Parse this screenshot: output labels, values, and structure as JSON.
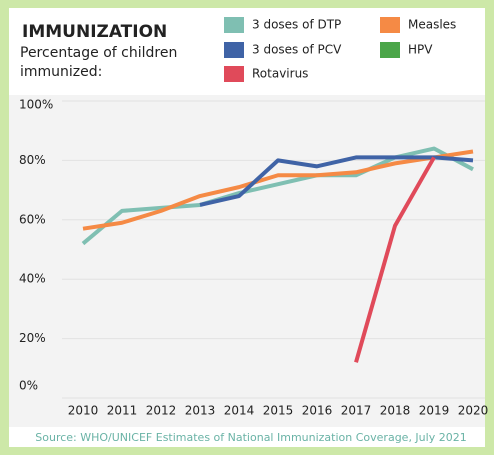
{
  "chart_data": {
    "type": "line",
    "title": "IMMUNIZATION",
    "subtitle": "Percentage of children immunized:",
    "source": "Source: WHO/UNICEF Estimates of National Immunization Coverage, July 2021",
    "categories": [
      "2010",
      "2011",
      "2012",
      "2013",
      "2014",
      "2015",
      "2016",
      "2017",
      "2018",
      "2019",
      "2020"
    ],
    "series": [
      {
        "name": "3 doses of DTP",
        "color": "#7fbfb2",
        "values": [
          52,
          63,
          64,
          65,
          69,
          72,
          75,
          75,
          81,
          84,
          77
        ]
      },
      {
        "name": "Measles",
        "color": "#f58a45",
        "values": [
          57,
          59,
          63,
          68,
          71,
          75,
          75,
          76,
          79,
          81,
          83
        ]
      },
      {
        "name": "3 doses of PCV",
        "color": "#3f63a6",
        "values": [
          null,
          null,
          null,
          65,
          68,
          80,
          78,
          81,
          81,
          81,
          80
        ]
      },
      {
        "name": "HPV",
        "color": "#4aa548",
        "values": [
          null,
          null,
          null,
          null,
          null,
          null,
          null,
          null,
          null,
          null,
          null
        ]
      },
      {
        "name": "Rotavirus",
        "color": "#e04a5a",
        "values": [
          null,
          null,
          null,
          null,
          null,
          null,
          null,
          12,
          58,
          81,
          null
        ]
      }
    ],
    "ylim": [
      0,
      100
    ],
    "yticks": [
      {
        "value": 0,
        "label": "0%"
      },
      {
        "value": 20,
        "label": "20%"
      },
      {
        "value": 40,
        "label": "40%"
      },
      {
        "value": 60,
        "label": "60%"
      },
      {
        "value": 80,
        "label": "80%"
      },
      {
        "value": 100,
        "label": "100%"
      }
    ],
    "grid": true
  }
}
